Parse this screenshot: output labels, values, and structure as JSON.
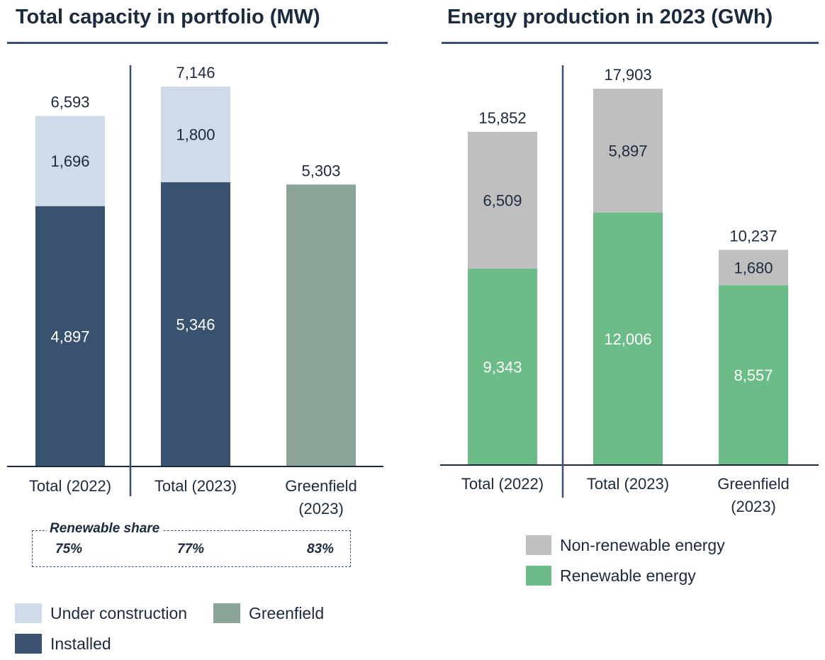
{
  "colors": {
    "installed": "#38526f",
    "under_construction": "#d0dbe9",
    "greenfield": "#8ca398",
    "renewable": "#6bbc87",
    "non_renewable": "#bfbfbf",
    "text_dark": "#1c2a3d",
    "rule": "#3a5170"
  },
  "chart_data": [
    {
      "type": "bar",
      "stacked": true,
      "title": "Total capacity in portfolio (MW)",
      "categories": [
        "Total (2022)",
        "Total (2023)",
        "Greenfield (2023)"
      ],
      "category_lines": [
        [
          "Total (2022)"
        ],
        [
          "Total (2023)"
        ],
        [
          "Greenfield",
          "(2023)"
        ]
      ],
      "series": [
        {
          "name": "Installed",
          "color_key": "installed",
          "values": [
            4897,
            5346,
            null
          ],
          "labels": [
            "4,897",
            "5,346",
            ""
          ]
        },
        {
          "name": "Under construction",
          "color_key": "under_construction",
          "values": [
            1696,
            1800,
            null
          ],
          "labels": [
            "1,696",
            "1,800",
            ""
          ]
        },
        {
          "name": "Greenfield",
          "color_key": "greenfield",
          "values": [
            null,
            null,
            5303
          ],
          "labels": [
            "",
            "",
            ""
          ]
        }
      ],
      "totals": [
        6593,
        7146,
        5303
      ],
      "total_labels": [
        "6,593",
        "7,146",
        "5,303"
      ],
      "ylim": [
        0,
        7500
      ],
      "grid": false,
      "separator_after_category": 0,
      "legend": [
        {
          "label": "Under construction",
          "color_key": "under_construction"
        },
        {
          "label": "Greenfield",
          "color_key": "greenfield"
        },
        {
          "label": "Installed",
          "color_key": "installed"
        }
      ],
      "legend_position": "bottom-left",
      "annotation": {
        "title": "Renewable share",
        "values": [
          "75%",
          "77%",
          "83%"
        ]
      }
    },
    {
      "type": "bar",
      "stacked": true,
      "title": "Energy production in 2023 (GWh)",
      "categories": [
        "Total (2022)",
        "Total (2023)",
        "Greenfield (2023)"
      ],
      "category_lines": [
        [
          "Total (2022)"
        ],
        [
          "Total (2023)"
        ],
        [
          "Greenfield",
          "(2023)"
        ]
      ],
      "series": [
        {
          "name": "Renewable energy",
          "color_key": "renewable",
          "values": [
            9343,
            12006,
            8557
          ],
          "labels": [
            "9,343",
            "12,006",
            "8,557"
          ]
        },
        {
          "name": "Non-renewable energy",
          "color_key": "non_renewable",
          "values": [
            6509,
            5897,
            1680
          ],
          "labels": [
            "6,509",
            "5,897",
            "1,680"
          ]
        }
      ],
      "totals": [
        15852,
        17903,
        10237
      ],
      "total_labels": [
        "15,852",
        "17,903",
        "10,237"
      ],
      "ylim": [
        0,
        19000
      ],
      "grid": false,
      "separator_after_category": 0,
      "legend": [
        {
          "label": "Non-renewable energy",
          "color_key": "non_renewable"
        },
        {
          "label": "Renewable energy",
          "color_key": "renewable"
        }
      ],
      "legend_position": "bottom-center"
    }
  ]
}
